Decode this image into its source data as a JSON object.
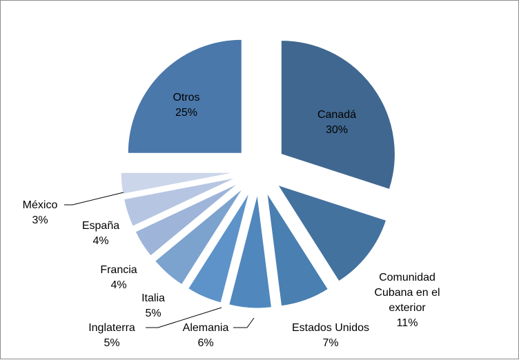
{
  "chart_data": {
    "type": "pie",
    "title": "",
    "legend": "none",
    "slices": [
      {
        "label": "Canadá",
        "value": 30,
        "pct_label": "30%",
        "color": "#40678f"
      },
      {
        "label": "Comunidad Cubana en el exterior",
        "value": 11,
        "pct_label": "11%",
        "color": "#44729f"
      },
      {
        "label": "Estados Unidos",
        "value": 7,
        "pct_label": "7%",
        "color": "#497fb1"
      },
      {
        "label": "Alemania",
        "value": 6,
        "pct_label": "6%",
        "color": "#5087bd"
      },
      {
        "label": "Inglaterra",
        "value": 5,
        "pct_label": "5%",
        "color": "#5d93c9"
      },
      {
        "label": "Italia",
        "value": 5,
        "pct_label": "5%",
        "color": "#7ca2ce"
      },
      {
        "label": "Francia",
        "value": 4,
        "pct_label": "4%",
        "color": "#9eb4d9"
      },
      {
        "label": "España",
        "value": 4,
        "pct_label": "4%",
        "color": "#b6c6e2"
      },
      {
        "label": "México",
        "value": 3,
        "pct_label": "3%",
        "color": "#cbd6ea"
      },
      {
        "label": "Otros",
        "value": 25,
        "pct_label": "25%",
        "color": "#4a78aa"
      }
    ]
  }
}
